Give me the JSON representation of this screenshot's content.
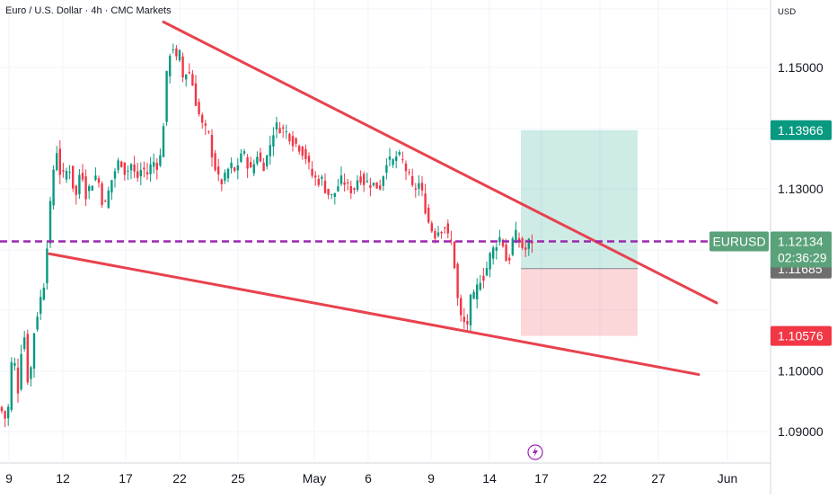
{
  "header": {
    "symbol_description": "Euro / U.S. Dollar · 4h · CMC Markets",
    "currency": "USD"
  },
  "chart_data": {
    "type": "candlestick",
    "symbol": "EURUSD",
    "x_ticks": [
      "9",
      "12",
      "17",
      "22",
      "25",
      "May",
      "6",
      "9",
      "14",
      "17",
      "22",
      "27",
      "Jun"
    ],
    "y_ticks": [
      "1.15000",
      "1.13000",
      "1.10000",
      "1.09000"
    ],
    "ylim": [
      1.0875,
      1.16
    ],
    "grid": true,
    "colors": {
      "up": "#089981",
      "down": "#f23645",
      "trendline": "#e8424e",
      "current_line": "#9c27b0"
    },
    "price_tags": {
      "symbol_tag": {
        "label": "EURUSD",
        "color": "#5aa27a"
      },
      "last_price": {
        "value": "1.12134",
        "countdown": "02:36:29",
        "color": "#5aa27a"
      },
      "take_profit": {
        "value": "1.13966",
        "color": "#089981"
      },
      "entry": {
        "value": "1.12120",
        "color": "#9c27b0"
      },
      "mid": {
        "value": "1.11685",
        "color": "#6e6e6e"
      },
      "stop_loss": {
        "value": "1.10576",
        "color": "#f23645"
      }
    },
    "current_price": 1.12134,
    "trendlines": [
      {
        "name": "upper",
        "from": {
          "x": 182,
          "y": 1.1575
        },
        "to": {
          "x": 798,
          "y": 1.1112
        }
      },
      {
        "name": "lower",
        "from": {
          "x": 55,
          "y": 1.1193
        },
        "to": {
          "x": 778,
          "y": 1.0994
        }
      }
    ],
    "position": {
      "entry": 1.1212,
      "take_profit": 1.13966,
      "stop_loss": 1.10576
    },
    "candle_path": [
      [
        0,
        1.094
      ],
      [
        8,
        1.0915
      ],
      [
        14,
        1.1035
      ],
      [
        20,
        1.097
      ],
      [
        26,
        1.108
      ],
      [
        32,
        1.0965
      ],
      [
        38,
        1.1065
      ],
      [
        44,
        1.1115
      ],
      [
        48,
        1.113
      ],
      [
        52,
        1.1205
      ],
      [
        56,
        1.127
      ],
      [
        60,
        1.134
      ],
      [
        64,
        1.137
      ],
      [
        68,
        1.131
      ],
      [
        72,
        1.1325
      ],
      [
        78,
        1.1335
      ],
      [
        84,
        1.128
      ],
      [
        90,
        1.134
      ],
      [
        96,
        1.129
      ],
      [
        102,
        1.131
      ],
      [
        108,
        1.1325
      ],
      [
        114,
        1.128
      ],
      [
        118,
        1.127
      ],
      [
        122,
        1.1305
      ],
      [
        128,
        1.133
      ],
      [
        134,
        1.135
      ],
      [
        140,
        1.1325
      ],
      [
        146,
        1.134
      ],
      [
        152,
        1.1315
      ],
      [
        158,
        1.1335
      ],
      [
        164,
        1.1325
      ],
      [
        170,
        1.1345
      ],
      [
        176,
        1.134
      ],
      [
        180,
        1.136
      ],
      [
        184,
        1.146
      ],
      [
        188,
        1.152
      ],
      [
        192,
        1.154
      ],
      [
        196,
        1.151
      ],
      [
        200,
        1.152
      ],
      [
        204,
        1.148
      ],
      [
        208,
        1.1495
      ],
      [
        212,
        1.149
      ],
      [
        216,
        1.146
      ],
      [
        220,
        1.143
      ],
      [
        226,
        1.14
      ],
      [
        232,
        1.139
      ],
      [
        238,
        1.1345
      ],
      [
        244,
        1.131
      ],
      [
        250,
        1.1315
      ],
      [
        256,
        1.134
      ],
      [
        262,
        1.1325
      ],
      [
        268,
        1.136
      ],
      [
        274,
        1.135
      ],
      [
        280,
        1.1325
      ],
      [
        286,
        1.136
      ],
      [
        292,
        1.1335
      ],
      [
        298,
        1.1355
      ],
      [
        304,
        1.1395
      ],
      [
        310,
        1.1405
      ],
      [
        316,
        1.1395
      ],
      [
        322,
        1.139
      ],
      [
        328,
        1.1375
      ],
      [
        334,
        1.137
      ],
      [
        340,
        1.1355
      ],
      [
        346,
        1.1325
      ],
      [
        352,
        1.1315
      ],
      [
        358,
        1.1315
      ],
      [
        364,
        1.1295
      ],
      [
        370,
        1.1285
      ],
      [
        376,
        1.1305
      ],
      [
        382,
        1.1315
      ],
      [
        388,
        1.13
      ],
      [
        394,
        1.13
      ],
      [
        400,
        1.1325
      ],
      [
        406,
        1.131
      ],
      [
        412,
        1.131
      ],
      [
        418,
        1.1305
      ],
      [
        424,
        1.1305
      ],
      [
        430,
        1.135
      ],
      [
        436,
        1.134
      ],
      [
        442,
        1.1355
      ],
      [
        448,
        1.1345
      ],
      [
        454,
        1.1325
      ],
      [
        460,
        1.1295
      ],
      [
        466,
        1.131
      ],
      [
        472,
        1.128
      ],
      [
        478,
        1.124
      ],
      [
        484,
        1.1225
      ],
      [
        490,
        1.1235
      ],
      [
        496,
        1.124
      ],
      [
        500,
        1.121
      ],
      [
        504,
        1.1215
      ],
      [
        508,
        1.1135
      ],
      [
        512,
        1.109
      ],
      [
        516,
        1.108
      ],
      [
        520,
        1.1075
      ],
      [
        524,
        1.1115
      ],
      [
        528,
        1.112
      ],
      [
        532,
        1.114
      ],
      [
        536,
        1.116
      ],
      [
        540,
        1.1155
      ],
      [
        544,
        1.1185
      ],
      [
        548,
        1.1195
      ],
      [
        552,
        1.121
      ],
      [
        556,
        1.122
      ],
      [
        560,
        1.121
      ],
      [
        564,
        1.118
      ],
      [
        568,
        1.119
      ],
      [
        572,
        1.1225
      ],
      [
        576,
        1.122
      ],
      [
        580,
        1.121
      ],
      [
        584,
        1.1195
      ],
      [
        588,
        1.121
      ],
      [
        592,
        1.1215
      ],
      [
        596,
        1.1213
      ]
    ]
  }
}
